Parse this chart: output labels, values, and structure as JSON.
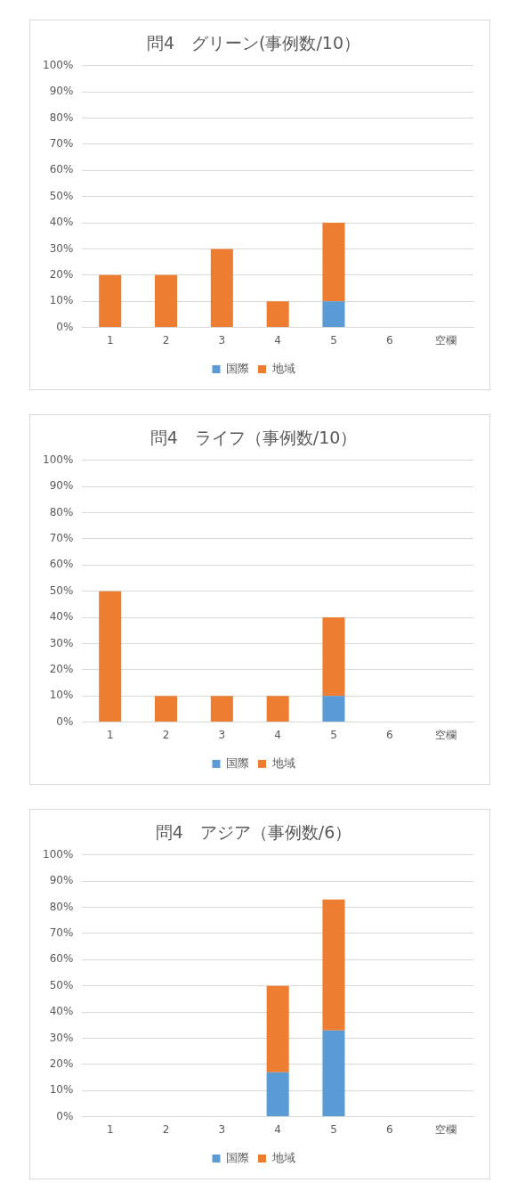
{
  "chart_data": [
    {
      "type": "bar",
      "title": "問4　グリーン(事例数/10）",
      "categories": [
        "1",
        "2",
        "3",
        "4",
        "5",
        "6",
        "空欄"
      ],
      "stacked": true,
      "series": [
        {
          "name": "国際",
          "color": "#5b9bd5",
          "values": [
            0,
            0,
            0,
            0,
            10,
            0,
            0
          ]
        },
        {
          "name": "地域",
          "color": "#ed7d31",
          "values": [
            20,
            20,
            30,
            10,
            30,
            0,
            0
          ]
        }
      ],
      "ylim": [
        0,
        100
      ],
      "yticks": [
        {
          "value": 0,
          "label": "0%"
        },
        {
          "value": 10,
          "label": "10%"
        },
        {
          "value": 20,
          "label": "20%"
        },
        {
          "value": 30,
          "label": "30%"
        },
        {
          "value": 40,
          "label": "40%"
        },
        {
          "value": 50,
          "label": "50%"
        },
        {
          "value": 60,
          "label": "60%"
        },
        {
          "value": 70,
          "label": "70%"
        },
        {
          "value": 80,
          "label": "80%"
        },
        {
          "value": 90,
          "label": "90%"
        },
        {
          "value": 100,
          "label": "100%"
        }
      ],
      "grid": "y",
      "legend": "bottom"
    },
    {
      "type": "bar",
      "title": "問4　ライフ（事例数/10）",
      "categories": [
        "1",
        "2",
        "3",
        "4",
        "5",
        "6",
        "空欄"
      ],
      "stacked": true,
      "series": [
        {
          "name": "国際",
          "color": "#5b9bd5",
          "values": [
            0,
            0,
            0,
            0,
            10,
            0,
            0
          ]
        },
        {
          "name": "地域",
          "color": "#ed7d31",
          "values": [
            50,
            10,
            10,
            10,
            30,
            0,
            0
          ]
        }
      ],
      "ylim": [
        0,
        100
      ],
      "yticks": [
        {
          "value": 0,
          "label": "0%"
        },
        {
          "value": 10,
          "label": "10%"
        },
        {
          "value": 20,
          "label": "20%"
        },
        {
          "value": 30,
          "label": "30%"
        },
        {
          "value": 40,
          "label": "40%"
        },
        {
          "value": 50,
          "label": "50%"
        },
        {
          "value": 60,
          "label": "60%"
        },
        {
          "value": 70,
          "label": "70%"
        },
        {
          "value": 80,
          "label": "80%"
        },
        {
          "value": 90,
          "label": "90%"
        },
        {
          "value": 100,
          "label": "100%"
        }
      ],
      "grid": "y",
      "legend": "bottom"
    },
    {
      "type": "bar",
      "title": "問4　アジア（事例数/6）",
      "categories": [
        "1",
        "2",
        "3",
        "4",
        "5",
        "6",
        "空欄"
      ],
      "stacked": true,
      "series": [
        {
          "name": "国際",
          "color": "#5b9bd5",
          "values": [
            0,
            0,
            0,
            17,
            33,
            0,
            0
          ]
        },
        {
          "name": "地域",
          "color": "#ed7d31",
          "values": [
            0,
            0,
            0,
            33,
            50,
            0,
            0
          ]
        }
      ],
      "ylim": [
        0,
        100
      ],
      "yticks": [
        {
          "value": 0,
          "label": "0%"
        },
        {
          "value": 10,
          "label": "10%"
        },
        {
          "value": 20,
          "label": "20%"
        },
        {
          "value": 30,
          "label": "30%"
        },
        {
          "value": 40,
          "label": "40%"
        },
        {
          "value": 50,
          "label": "50%"
        },
        {
          "value": 60,
          "label": "60%"
        },
        {
          "value": 70,
          "label": "70%"
        },
        {
          "value": 80,
          "label": "80%"
        },
        {
          "value": 90,
          "label": "90%"
        },
        {
          "value": 100,
          "label": "100%"
        }
      ],
      "grid": "y",
      "legend": "bottom"
    }
  ]
}
